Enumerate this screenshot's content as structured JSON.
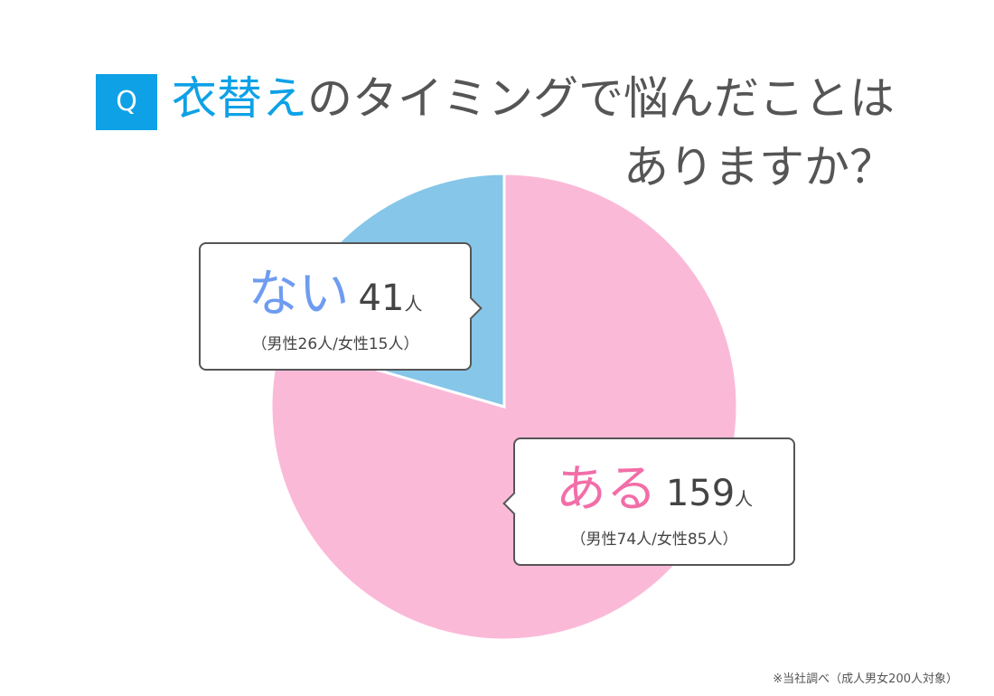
{
  "question": {
    "badge": "Q",
    "title_highlight": "衣替え",
    "title_rest": "のタイミングで悩んだことは",
    "title_line2": "ありますか？"
  },
  "colors": {
    "accent": "#0ea1e6",
    "aru": "#fbb9d8",
    "nai": "#86c6e8",
    "aru_text": "#f26ea8",
    "nai_text": "#6e9cf0"
  },
  "chart_data": {
    "type": "pie",
    "total": 200,
    "slices": [
      {
        "label": "ある",
        "value": 159,
        "unit": "人",
        "detail": "（男性74人/女性85人）"
      },
      {
        "label": "ない",
        "value": 41,
        "unit": "人",
        "detail": "（男性26人/女性15人）"
      }
    ]
  },
  "footnote": "※当社調べ（成人男女200人対象）"
}
